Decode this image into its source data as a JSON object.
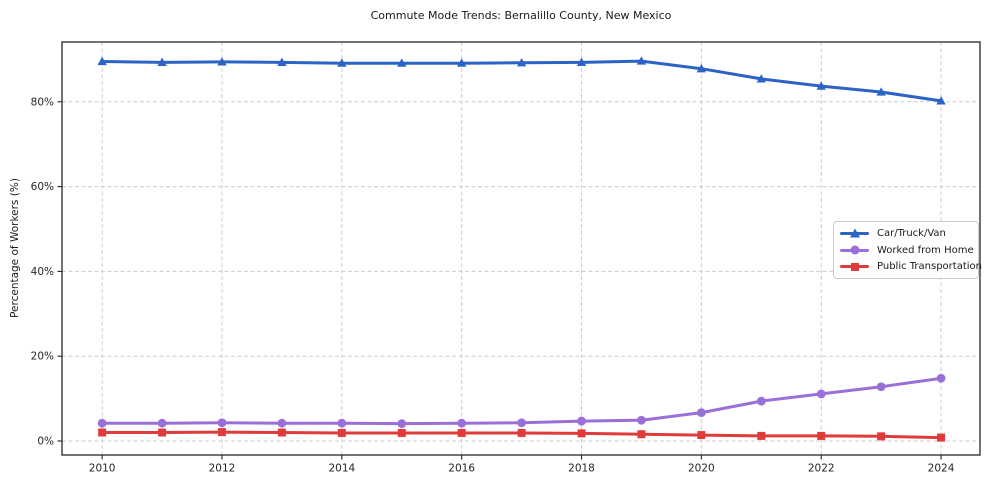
{
  "chart_data": {
    "type": "line",
    "title": "Commute Mode Trends: Bernalillo County, New Mexico",
    "xlabel": "",
    "ylabel": "Percentage of Workers (%)",
    "x": [
      2010,
      2011,
      2012,
      2013,
      2014,
      2015,
      2016,
      2017,
      2018,
      2019,
      2020,
      2021,
      2022,
      2023,
      2024
    ],
    "x_tick_labels": [
      "2010",
      "2012",
      "2014",
      "2016",
      "2018",
      "2020",
      "2022",
      "2024"
    ],
    "x_tick_values": [
      2010,
      2012,
      2014,
      2016,
      2018,
      2020,
      2022,
      2024
    ],
    "y_tick_labels": [
      "0%",
      "20%",
      "40%",
      "60%",
      "80%"
    ],
    "y_tick_values": [
      0,
      20,
      40,
      60,
      80
    ],
    "xlim": [
      2009.33,
      2024.65
    ],
    "ylim": [
      -3.3,
      94.1
    ],
    "grid": true,
    "legend_position": "center right",
    "series": [
      {
        "name": "Car/Truck/Van",
        "color": "#2c63c7",
        "marker": "triangle",
        "values": [
          89.5,
          89.3,
          89.4,
          89.3,
          89.1,
          89.1,
          89.1,
          89.2,
          89.3,
          89.6,
          87.8,
          85.4,
          83.7,
          82.3,
          80.2
        ]
      },
      {
        "name": "Worked from Home",
        "color": "#9a70d8",
        "marker": "circle",
        "values": [
          4.2,
          4.2,
          4.3,
          4.2,
          4.2,
          4.1,
          4.2,
          4.3,
          4.7,
          4.9,
          6.7,
          9.4,
          11.1,
          12.8,
          14.8
        ]
      },
      {
        "name": "Public Transportation",
        "color": "#e03b3b",
        "marker": "square",
        "values": [
          2.0,
          2.0,
          2.1,
          2.0,
          1.9,
          1.9,
          1.9,
          1.9,
          1.8,
          1.6,
          1.4,
          1.2,
          1.2,
          1.1,
          0.8
        ]
      }
    ]
  }
}
